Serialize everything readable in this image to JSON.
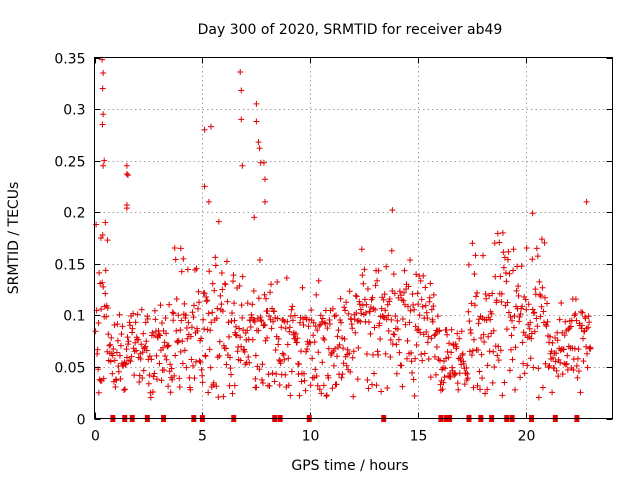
{
  "chart_data": {
    "type": "scatter",
    "title": "Day 300 of 2020, SRMTID for receiver ab49",
    "xlabel": "GPS time / hours",
    "ylabel": "SRMTID / TECUs",
    "xlim": [
      0,
      24
    ],
    "ylim": [
      0,
      0.35
    ],
    "xticks": [
      0,
      5,
      10,
      15,
      20
    ],
    "xtick_labels": [
      "0",
      "5",
      "10",
      "15",
      "20"
    ],
    "yticks": [
      0,
      0.05,
      0.1,
      0.15,
      0.2,
      0.25,
      0.3,
      0.35
    ],
    "ytick_labels": [
      "0",
      "0.05",
      "0.1",
      "0.15",
      "0.2",
      "0.25",
      "0.3",
      "0.35"
    ],
    "grid": true,
    "marker": "+",
    "color": "#e00000",
    "series": [
      {
        "name": "SRMTID",
        "outliers": [
          {
            "x": 0.35,
            "y": 0.348
          },
          {
            "x": 0.4,
            "y": 0.335
          },
          {
            "x": 0.38,
            "y": 0.32
          },
          {
            "x": 0.4,
            "y": 0.295
          },
          {
            "x": 0.37,
            "y": 0.285
          },
          {
            "x": 0.45,
            "y": 0.25
          },
          {
            "x": 0.4,
            "y": 0.245
          },
          {
            "x": 1.5,
            "y": 0.245
          },
          {
            "x": 1.5,
            "y": 0.237
          },
          {
            "x": 1.55,
            "y": 0.236
          },
          {
            "x": 1.5,
            "y": 0.207
          },
          {
            "x": 1.5,
            "y": 0.204
          },
          {
            "x": 5.1,
            "y": 0.28
          },
          {
            "x": 5.4,
            "y": 0.283
          },
          {
            "x": 5.1,
            "y": 0.225
          },
          {
            "x": 5.3,
            "y": 0.21
          },
          {
            "x": 6.75,
            "y": 0.336
          },
          {
            "x": 6.8,
            "y": 0.318
          },
          {
            "x": 6.8,
            "y": 0.29
          },
          {
            "x": 7.5,
            "y": 0.305
          },
          {
            "x": 7.5,
            "y": 0.288
          },
          {
            "x": 7.6,
            "y": 0.268
          },
          {
            "x": 7.65,
            "y": 0.262
          },
          {
            "x": 7.7,
            "y": 0.248
          },
          {
            "x": 7.85,
            "y": 0.248
          },
          {
            "x": 6.85,
            "y": 0.245
          },
          {
            "x": 7.9,
            "y": 0.232
          },
          {
            "x": 13.8,
            "y": 0.202
          },
          {
            "x": 20.3,
            "y": 0.199
          },
          {
            "x": 22.8,
            "y": 0.21
          },
          {
            "x": 0.5,
            "y": 0.19
          },
          {
            "x": 0.3,
            "y": 0.175
          },
          {
            "x": 0.6,
            "y": 0.173
          },
          {
            "x": 4.0,
            "y": 0.165
          },
          {
            "x": 7.9,
            "y": 0.21
          },
          {
            "x": 7.4,
            "y": 0.195
          },
          {
            "x": 6.5,
            "y": 0.032
          },
          {
            "x": 7.45,
            "y": 0.03
          },
          {
            "x": 0.2,
            "y": 0.025
          }
        ],
        "bulk_range": [
          0.02,
          0.2
        ],
        "zero_points_x": [
          0.85,
          1.4,
          1.75,
          2.45,
          3.2,
          4.6,
          5.0,
          6.45,
          8.35,
          8.6,
          9.95,
          13.4,
          16.05,
          16.3,
          16.45,
          17.35,
          17.9,
          18.4,
          19.1,
          19.35,
          20.25,
          21.35,
          22.35
        ]
      }
    ]
  }
}
